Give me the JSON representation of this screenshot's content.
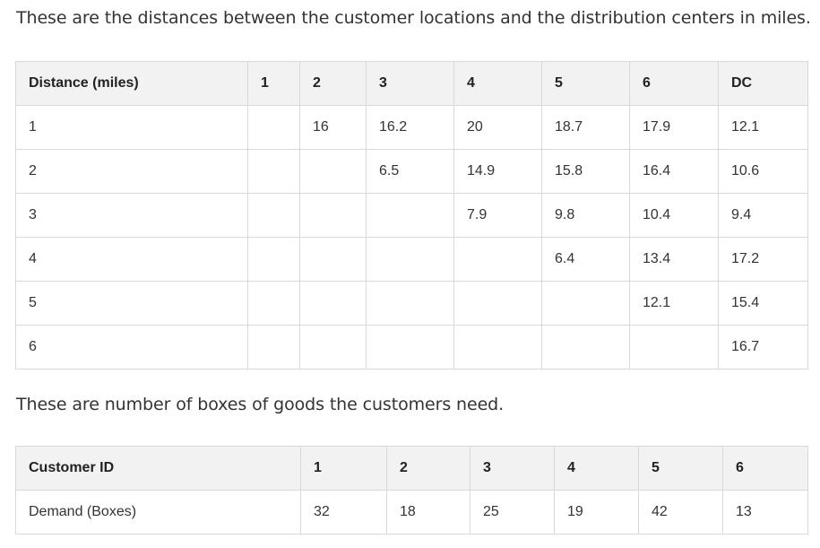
{
  "intro_distance": "These are the distances between the customer locations and the distribution centers in miles.",
  "intro_demand": "These are number of boxes of goods the customers need.",
  "distance_table": {
    "headers": [
      "Distance (miles)",
      "1",
      "2",
      "3",
      "4",
      "5",
      "6",
      "DC"
    ],
    "rows": [
      [
        "1",
        "",
        "16",
        "16.2",
        "20",
        "18.7",
        "17.9",
        "12.1"
      ],
      [
        "2",
        "",
        "",
        "6.5",
        "14.9",
        "15.8",
        "16.4",
        "10.6"
      ],
      [
        "3",
        "",
        "",
        "",
        "7.9",
        "9.8",
        "10.4",
        "9.4"
      ],
      [
        "4",
        "",
        "",
        "",
        "",
        "6.4",
        "13.4",
        "17.2"
      ],
      [
        "5",
        "",
        "",
        "",
        "",
        "",
        "12.1",
        "15.4"
      ],
      [
        "6",
        "",
        "",
        "",
        "",
        "",
        "",
        "16.7"
      ]
    ]
  },
  "demand_table": {
    "headers": [
      "Customer ID",
      "1",
      "2",
      "3",
      "4",
      "5",
      "6"
    ],
    "rows": [
      [
        "Demand (Boxes)",
        "32",
        "18",
        "25",
        "19",
        "42",
        "13"
      ]
    ]
  }
}
